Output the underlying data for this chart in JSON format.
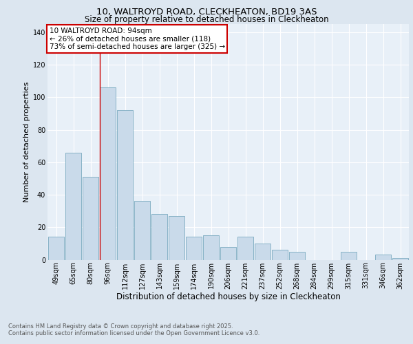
{
  "title1": "10, WALTROYD ROAD, CLECKHEATON, BD19 3AS",
  "title2": "Size of property relative to detached houses in Cleckheaton",
  "xlabel": "Distribution of detached houses by size in Cleckheaton",
  "ylabel": "Number of detached properties",
  "categories": [
    "49sqm",
    "65sqm",
    "80sqm",
    "96sqm",
    "112sqm",
    "127sqm",
    "143sqm",
    "159sqm",
    "174sqm",
    "190sqm",
    "206sqm",
    "221sqm",
    "237sqm",
    "252sqm",
    "268sqm",
    "284sqm",
    "299sqm",
    "315sqm",
    "331sqm",
    "346sqm",
    "362sqm"
  ],
  "values": [
    14,
    66,
    51,
    106,
    92,
    36,
    28,
    27,
    14,
    15,
    8,
    14,
    10,
    6,
    5,
    0,
    0,
    5,
    0,
    3,
    1
  ],
  "bar_color": "#c9daea",
  "bar_edge_color": "#7aaabf",
  "ylim": [
    0,
    145
  ],
  "yticks": [
    0,
    20,
    40,
    60,
    80,
    100,
    120,
    140
  ],
  "vline_index": 3,
  "annotation_line1": "10 WALTROYD ROAD: 94sqm",
  "annotation_line2": "← 26% of detached houses are smaller (118)",
  "annotation_line3": "73% of semi-detached houses are larger (325) →",
  "annotation_box_color": "#ffffff",
  "annotation_box_edge": "#cc0000",
  "vline_color": "#cc0000",
  "footer1": "Contains HM Land Registry data © Crown copyright and database right 2025.",
  "footer2": "Contains public sector information licensed under the Open Government Licence v3.0.",
  "bg_color": "#dce6f0",
  "plot_bg_color": "#e8f0f8",
  "grid_color": "#ffffff",
  "title1_fontsize": 9.5,
  "title2_fontsize": 8.5,
  "xlabel_fontsize": 8.5,
  "ylabel_fontsize": 8,
  "tick_fontsize": 7,
  "footer_fontsize": 6,
  "annot_fontsize": 7.5
}
